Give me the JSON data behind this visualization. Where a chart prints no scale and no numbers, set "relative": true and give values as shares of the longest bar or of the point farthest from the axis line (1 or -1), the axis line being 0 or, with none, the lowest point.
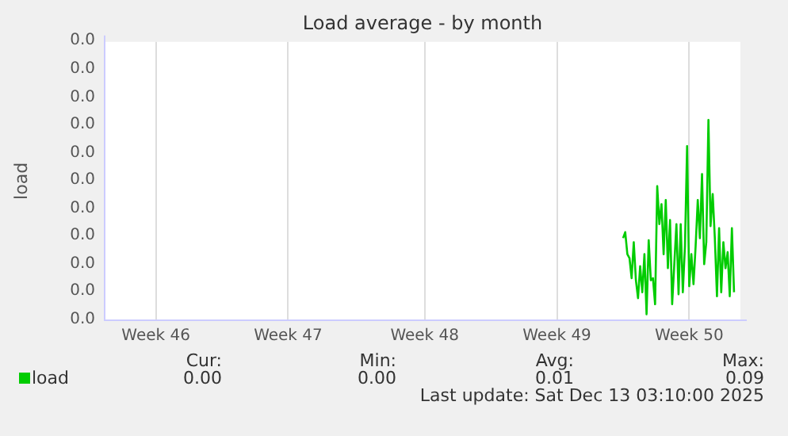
{
  "chart_data": {
    "type": "line",
    "title": "Load average - by month",
    "ylabel": "load",
    "relative": true,
    "categories": [
      null,
      null,
      null,
      null,
      null,
      null,
      null,
      null,
      null,
      null,
      null,
      null,
      null,
      null,
      null,
      null,
      null,
      null,
      null,
      null,
      null,
      null,
      null,
      null,
      "Week 46",
      null,
      null,
      null,
      null,
      null,
      null,
      null,
      null,
      null,
      null,
      null,
      null,
      null,
      null,
      null,
      null,
      null,
      null,
      null,
      null,
      null,
      null,
      null,
      null,
      null,
      null,
      null,
      null,
      null,
      null,
      null,
      null,
      null,
      null,
      null,
      null,
      null,
      null,
      null,
      null,
      null,
      null,
      null,
      null,
      null,
      null,
      null,
      null,
      null,
      null,
      null,
      null,
      null,
      null,
      null,
      null,
      null,
      null,
      null,
      null,
      null,
      "Week 47",
      null,
      null,
      null,
      null,
      null,
      null,
      null,
      null,
      null,
      null,
      null,
      null,
      null,
      null,
      null,
      null,
      null,
      null,
      null,
      null,
      null,
      null,
      null,
      null,
      null,
      null,
      null,
      null,
      null,
      null,
      null,
      null,
      null,
      null,
      null,
      null,
      null,
      null,
      null,
      null,
      null,
      null,
      null,
      null,
      null,
      null,
      null,
      null,
      null,
      null,
      null,
      null,
      null,
      null,
      null,
      null,
      null,
      null,
      null,
      null,
      null,
      null,
      null,
      "Week 48",
      null,
      null,
      null,
      null,
      null,
      null,
      null,
      null,
      null,
      null,
      null,
      null,
      null,
      null,
      null,
      null,
      null,
      null,
      null,
      null,
      null,
      null,
      null,
      null,
      null,
      null,
      null,
      null,
      null,
      null,
      null,
      null,
      null,
      null,
      null,
      null,
      null,
      null,
      null,
      null,
      null,
      null,
      null,
      null,
      null,
      null,
      null,
      null,
      null,
      null,
      null,
      null,
      null,
      null,
      null,
      null,
      null,
      null,
      null,
      null,
      null,
      "Week 49",
      null,
      null,
      null,
      null,
      null,
      null,
      null,
      null,
      null,
      null,
      null,
      null,
      null,
      null,
      null,
      null,
      null,
      null,
      null,
      null,
      null,
      null,
      null,
      null,
      null,
      null,
      null,
      null,
      null,
      null,
      null,
      null,
      null,
      null,
      null,
      null,
      null,
      null,
      null,
      null,
      null,
      null,
      null,
      null,
      null,
      null,
      null,
      null,
      null,
      null,
      null,
      null,
      null,
      null,
      null,
      null,
      null,
      null,
      null,
      null,
      null,
      "Week 50",
      null,
      null,
      null,
      null,
      null,
      null,
      null,
      null,
      null,
      null,
      null,
      null,
      null,
      null,
      null,
      null,
      null,
      null,
      null,
      null,
      null,
      null,
      null,
      null
    ],
    "grid": "x",
    "legend": "bottom left",
    "marker": "none",
    "series": [
      {
        "name": "load",
        "color": "#00cc00",
        "values": [
          null,
          null,
          null,
          null,
          null,
          null,
          null,
          null,
          null,
          null,
          null,
          null,
          null,
          null,
          null,
          null,
          null,
          null,
          null,
          null,
          null,
          null,
          null,
          null,
          null,
          null,
          null,
          null,
          null,
          null,
          null,
          null,
          null,
          null,
          null,
          null,
          null,
          null,
          null,
          null,
          null,
          null,
          null,
          null,
          null,
          null,
          null,
          null,
          null,
          null,
          null,
          null,
          null,
          null,
          null,
          null,
          null,
          null,
          null,
          null,
          null,
          null,
          null,
          null,
          null,
          null,
          null,
          null,
          null,
          null,
          null,
          null,
          null,
          null,
          null,
          null,
          null,
          null,
          null,
          null,
          null,
          null,
          null,
          null,
          null,
          null,
          null,
          null,
          null,
          null,
          null,
          null,
          null,
          null,
          null,
          null,
          null,
          null,
          null,
          null,
          null,
          null,
          null,
          null,
          null,
          null,
          null,
          null,
          null,
          null,
          null,
          null,
          null,
          null,
          null,
          null,
          null,
          null,
          null,
          null,
          null,
          null,
          null,
          null,
          null,
          null,
          null,
          null,
          null,
          null,
          null,
          null,
          null,
          null,
          null,
          null,
          null,
          null,
          null,
          null,
          null,
          null,
          null,
          null,
          null,
          null,
          null,
          null,
          null,
          null,
          null,
          null,
          null,
          null,
          null,
          null,
          null,
          null,
          null,
          null,
          null,
          null,
          null,
          null,
          null,
          null,
          null,
          null,
          null,
          null,
          null,
          null,
          null,
          null,
          null,
          null,
          null,
          null,
          null,
          null,
          null,
          null,
          null,
          null,
          null,
          null,
          null,
          null,
          null,
          null,
          null,
          null,
          null,
          null,
          null,
          null,
          null,
          null,
          null,
          null,
          null,
          null,
          null,
          null,
          null,
          null,
          null,
          null,
          null,
          null,
          null,
          null,
          null,
          null,
          null,
          null,
          null,
          null,
          null,
          null,
          null,
          null,
          null,
          null,
          null,
          null,
          null,
          null,
          null,
          null,
          null,
          null,
          null,
          null,
          null,
          null,
          null,
          null,
          null,
          null,
          null,
          null,
          null,
          0.41,
          0.44,
          0.33,
          0.31,
          0.21,
          0.39,
          0.2,
          0.11,
          0.27,
          0.14,
          0.33,
          0.03,
          0.4,
          0.2,
          0.21,
          0.08,
          0.67,
          0.48,
          0.58,
          0.33,
          0.6,
          0.26,
          0.5,
          0.08,
          0.28,
          0.48,
          0.13,
          0.48,
          0.14,
          0.37,
          0.87,
          0.17,
          0.33,
          0.18,
          0.37,
          0.6,
          0.41,
          0.73,
          0.28,
          0.39,
          1,
          0.47,
          0.63,
          0.41,
          0.12,
          0.46,
          0.14,
          0.39,
          0.26,
          0.34,
          0.12,
          0.46,
          0.14,
          null,
          null,
          null
        ]
      }
    ],
    "annotations": [
      "0.0",
      "0.0",
      "0.0",
      "0.0",
      "0.0",
      "0.0",
      "0.0",
      "0.0",
      "0.0",
      "0.0",
      "0.0",
      "Cur:",
      "0.00",
      "Min:",
      "0.00",
      "Avg:",
      "0.01",
      "Max:",
      "0.09",
      "Last update: Sat Dec 13 03:10:00 2025"
    ]
  }
}
